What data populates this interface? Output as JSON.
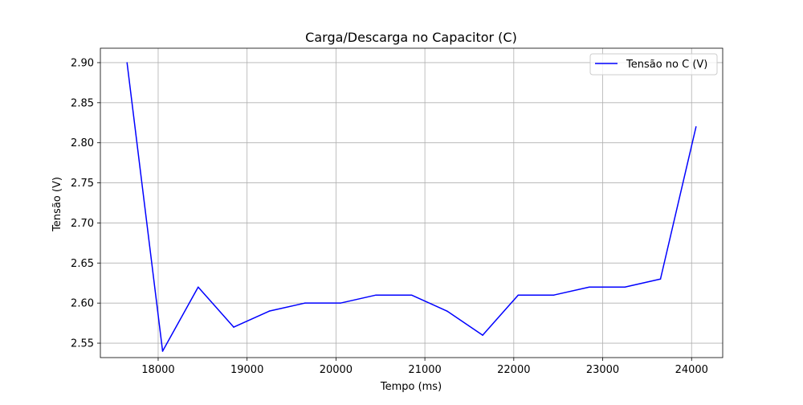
{
  "chart_data": {
    "type": "line",
    "title": "Carga/Descarga no Capacitor (C)",
    "xlabel": "Tempo (ms)",
    "ylabel": "Tensão (V)",
    "xlim": [
      17350,
      24350
    ],
    "ylim": [
      2.532,
      2.918
    ],
    "xticks": [
      18000,
      19000,
      20000,
      21000,
      22000,
      23000,
      24000
    ],
    "xtick_labels": [
      "18000",
      "19000",
      "20000",
      "21000",
      "22000",
      "23000",
      "24000"
    ],
    "yticks": [
      2.55,
      2.6,
      2.65,
      2.7,
      2.75,
      2.8,
      2.85,
      2.9
    ],
    "ytick_labels": [
      "2.55",
      "2.60",
      "2.65",
      "2.70",
      "2.75",
      "2.80",
      "2.85",
      "2.90"
    ],
    "grid": true,
    "legend_position": "top-right",
    "series": [
      {
        "name": "Tensão no C (V)",
        "color": "#0000ff",
        "x": [
          17650,
          18050,
          18450,
          18850,
          19250,
          19650,
          20050,
          20450,
          20850,
          21250,
          21650,
          22050,
          22450,
          22850,
          23250,
          23650,
          24050
        ],
        "y": [
          2.9,
          2.54,
          2.62,
          2.57,
          2.59,
          2.6,
          2.6,
          2.61,
          2.61,
          2.59,
          2.56,
          2.61,
          2.61,
          2.62,
          2.62,
          2.63,
          2.82
        ]
      }
    ]
  }
}
